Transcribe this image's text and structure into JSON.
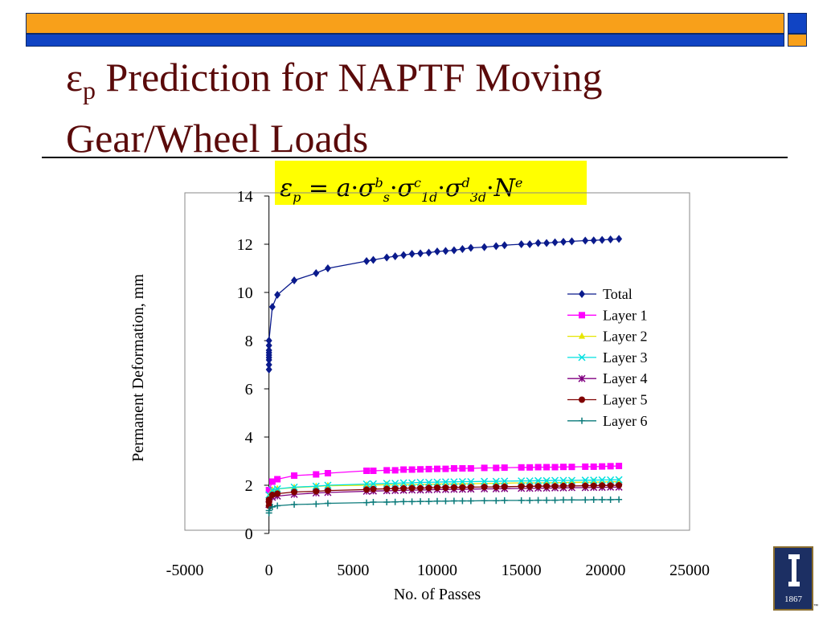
{
  "slide": {
    "title_symbol": "ε",
    "title_subscript": "p",
    "title_rest": " Prediction for NAPTF Moving",
    "title_line2": "Gear/Wheel Loads",
    "logo_year": "1867",
    "tm": "™"
  },
  "formula": {
    "eps": "ε",
    "eps_sub": "p",
    "eq": "=",
    "a": "a",
    "dot": "·",
    "sigma": "σ",
    "s_sub": "s",
    "b_sup": "b",
    "sub_1d": "1d",
    "c_sup": "c",
    "sub_3d": "3d",
    "d_sup": "d",
    "N": "N",
    "e_sup": "e"
  },
  "colors": {
    "title": "#5a0a0a",
    "bar_orange": "#f8a01a",
    "bar_blue": "#1044c4",
    "formula_bg": "#ffff00"
  },
  "chart_data": {
    "type": "line",
    "title": "",
    "xlabel": "No. of Passes",
    "ylabel": "Permanent Deformation, mm",
    "xlim": [
      -5000,
      25000
    ],
    "ylim": [
      0,
      14
    ],
    "xticks": [
      "-5000",
      "0",
      "5000",
      "10000",
      "15000",
      "20000",
      "25000"
    ],
    "yticks": [
      "0",
      "2",
      "4",
      "6",
      "8",
      "10",
      "12",
      "14"
    ],
    "grid": false,
    "legend_position": "right",
    "series": [
      {
        "name": "Total",
        "color": "#0a1a8c",
        "marker": "diamond",
        "x": [
          0,
          0,
          0,
          0,
          0,
          0,
          0,
          0,
          0,
          200,
          500,
          1500,
          2800,
          3500,
          5800,
          6200,
          7000,
          7500,
          8000,
          8500,
          9000,
          9500,
          10000,
          10500,
          11000,
          11500,
          12000,
          12800,
          13500,
          14000,
          15000,
          15500,
          16000,
          16500,
          17000,
          17500,
          18000,
          18800,
          19300,
          19800,
          20300,
          20800
        ],
        "y": [
          6.8,
          7.0,
          7.2,
          7.3,
          7.4,
          7.5,
          7.6,
          7.8,
          8.0,
          9.4,
          9.9,
          10.5,
          10.8,
          11.0,
          11.3,
          11.35,
          11.45,
          11.5,
          11.55,
          11.6,
          11.62,
          11.65,
          11.7,
          11.72,
          11.75,
          11.8,
          11.85,
          11.88,
          11.92,
          11.96,
          12.0,
          12.0,
          12.05,
          12.05,
          12.08,
          12.1,
          12.12,
          12.15,
          12.16,
          12.18,
          12.2,
          12.22
        ]
      },
      {
        "name": "Layer 1",
        "color": "#ff00ff",
        "marker": "square",
        "x": [
          0,
          200,
          500,
          1500,
          2800,
          3500,
          5800,
          6200,
          7000,
          7500,
          8000,
          8500,
          9000,
          9500,
          10000,
          10500,
          11000,
          11500,
          12000,
          12800,
          13500,
          14000,
          15000,
          15500,
          16000,
          16500,
          17000,
          17500,
          18000,
          18800,
          19300,
          19800,
          20300,
          20800
        ],
        "y": [
          1.8,
          2.15,
          2.25,
          2.4,
          2.45,
          2.5,
          2.6,
          2.6,
          2.62,
          2.62,
          2.65,
          2.65,
          2.66,
          2.67,
          2.68,
          2.68,
          2.7,
          2.7,
          2.7,
          2.72,
          2.72,
          2.73,
          2.74,
          2.74,
          2.75,
          2.75,
          2.75,
          2.76,
          2.76,
          2.77,
          2.77,
          2.78,
          2.79,
          2.8
        ]
      },
      {
        "name": "Layer 2",
        "color": "#e6e600",
        "marker": "triangle",
        "x": [
          0,
          200,
          500,
          1500,
          2800,
          3500,
          5800,
          7000,
          8500,
          10000,
          11500,
          13500,
          15000,
          16500,
          18000,
          19300,
          20800
        ],
        "y": [
          1.55,
          1.8,
          1.85,
          1.9,
          1.95,
          1.98,
          2.0,
          2.02,
          2.03,
          2.05,
          2.06,
          2.08,
          2.1,
          2.1,
          2.12,
          2.13,
          2.15
        ]
      },
      {
        "name": "Layer 3",
        "color": "#00e0e0",
        "marker": "x",
        "x": [
          0,
          200,
          500,
          1500,
          2800,
          3500,
          5800,
          6200,
          7000,
          7500,
          8000,
          8500,
          9000,
          9500,
          10000,
          10500,
          11000,
          11500,
          12000,
          12800,
          13500,
          14000,
          15000,
          15500,
          16000,
          16500,
          17000,
          17500,
          18000,
          18800,
          19300,
          19800,
          20300,
          20800
        ],
        "y": [
          1.6,
          1.8,
          1.85,
          1.92,
          1.96,
          2.0,
          2.05,
          2.06,
          2.08,
          2.08,
          2.1,
          2.1,
          2.12,
          2.12,
          2.13,
          2.14,
          2.14,
          2.15,
          2.15,
          2.16,
          2.16,
          2.17,
          2.18,
          2.18,
          2.19,
          2.19,
          2.2,
          2.2,
          2.2,
          2.21,
          2.21,
          2.22,
          2.22,
          2.23
        ]
      },
      {
        "name": "Layer 4",
        "color": "#800080",
        "marker": "asterisk",
        "x": [
          0,
          200,
          500,
          1500,
          2800,
          3500,
          5800,
          6200,
          7000,
          7500,
          8000,
          8500,
          9000,
          9500,
          10000,
          10500,
          11000,
          11500,
          12000,
          12800,
          13500,
          14000,
          15000,
          15500,
          16000,
          16500,
          17000,
          17500,
          18000,
          18800,
          19300,
          19800,
          20300,
          20800
        ],
        "y": [
          1.2,
          1.5,
          1.55,
          1.62,
          1.68,
          1.7,
          1.75,
          1.76,
          1.77,
          1.78,
          1.79,
          1.8,
          1.8,
          1.81,
          1.82,
          1.82,
          1.83,
          1.83,
          1.84,
          1.85,
          1.85,
          1.86,
          1.87,
          1.87,
          1.88,
          1.88,
          1.89,
          1.89,
          1.9,
          1.9,
          1.91,
          1.91,
          1.92,
          1.92
        ]
      },
      {
        "name": "Layer 5",
        "color": "#800000",
        "marker": "circle",
        "x": [
          0,
          0,
          0,
          200,
          500,
          1500,
          2800,
          3500,
          5800,
          6200,
          7000,
          7500,
          8000,
          8500,
          9000,
          9500,
          10000,
          10500,
          11000,
          11500,
          12000,
          12800,
          13500,
          14000,
          15000,
          15500,
          16000,
          16500,
          17000,
          17500,
          18000,
          18800,
          19300,
          19800,
          20300,
          20800
        ],
        "y": [
          1.15,
          1.3,
          1.4,
          1.6,
          1.65,
          1.72,
          1.75,
          1.78,
          1.82,
          1.84,
          1.85,
          1.86,
          1.87,
          1.88,
          1.88,
          1.89,
          1.9,
          1.9,
          1.91,
          1.91,
          1.92,
          1.93,
          1.93,
          1.94,
          1.95,
          1.95,
          1.96,
          1.96,
          1.96,
          1.97,
          1.97,
          1.98,
          1.98,
          1.99,
          1.99,
          2.0
        ]
      },
      {
        "name": "Layer 6",
        "color": "#0a7a7a",
        "marker": "plus",
        "x": [
          0,
          0,
          200,
          500,
          1500,
          2800,
          3500,
          5800,
          6200,
          7000,
          7500,
          8000,
          8500,
          9000,
          9500,
          10000,
          10500,
          11000,
          11500,
          12000,
          12800,
          13500,
          14000,
          15000,
          15500,
          16000,
          16500,
          17000,
          17500,
          18000,
          18800,
          19300,
          19800,
          20300,
          20800
        ],
        "y": [
          0.85,
          0.95,
          1.1,
          1.15,
          1.2,
          1.22,
          1.25,
          1.28,
          1.3,
          1.3,
          1.31,
          1.32,
          1.32,
          1.33,
          1.33,
          1.34,
          1.34,
          1.35,
          1.35,
          1.35,
          1.36,
          1.36,
          1.37,
          1.37,
          1.37,
          1.38,
          1.38,
          1.38,
          1.39,
          1.39,
          1.39,
          1.4,
          1.4,
          1.4,
          1.41
        ]
      }
    ]
  }
}
